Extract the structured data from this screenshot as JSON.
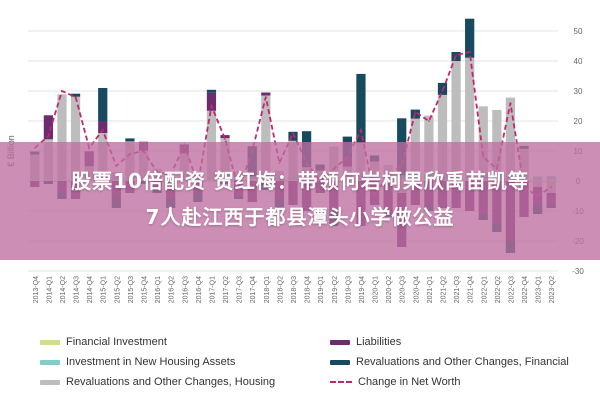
{
  "headline": {
    "line1": "股票10倍配资 贺红梅：带领何岩柯果欣禹苗凯等",
    "line2": "7人赴江西于都县潭头小学做公益"
  },
  "chart_data": {
    "type": "bar",
    "ylabel": "€ Billion",
    "ylim": [
      -30,
      50
    ],
    "yticks": [
      50,
      40,
      30,
      20,
      10,
      0,
      -10,
      -20,
      -30
    ],
    "grid": true,
    "legend_position": "bottom",
    "categories": [
      "2013-Q4",
      "2014-Q1",
      "2014-Q2",
      "2014-Q3",
      "2014-Q4",
      "2015-Q1",
      "2015-Q2",
      "2015-Q3",
      "2015-Q4",
      "2016-Q1",
      "2016-Q2",
      "2016-Q3",
      "2016-Q4",
      "2017-Q1",
      "2017-Q2",
      "2017-Q3",
      "2017-Q4",
      "2018-Q1",
      "2018-Q2",
      "2018-Q3",
      "2018-Q4",
      "2019-Q1",
      "2019-Q2",
      "2019-Q3",
      "2019-Q4",
      "2020-Q1",
      "2020-Q2",
      "2020-Q3",
      "2020-Q4",
      "2021-Q1",
      "2021-Q2",
      "2021-Q3",
      "2021-Q4",
      "2022-Q1",
      "2022-Q2",
      "2022-Q3",
      "2022-Q4",
      "2023-Q1",
      "2023-Q2"
    ],
    "series": [
      {
        "name": "Financial Investment",
        "kind": "bar",
        "color": "#cfe08c",
        "values": [
          0.3,
          0.4,
          0.3,
          0.5,
          0.3,
          0.4,
          0.3,
          0.5,
          0.4,
          0.3,
          0.5,
          0.4,
          0.3,
          0.5,
          0.4,
          0.3,
          0.6,
          0.5,
          0.4,
          0.3,
          0.5,
          0.4,
          0.3,
          0.6,
          0.5,
          0.4,
          0.3,
          0.6,
          0.5,
          0.4,
          0.3,
          0.5,
          0.6,
          0.4,
          0.3,
          0.5,
          0.4,
          0.3,
          0.4
        ]
      },
      {
        "name": "Investment in New Housing Assets",
        "kind": "bar",
        "color": "#7fcfc6",
        "values": [
          0.5,
          0.5,
          0.6,
          0.6,
          0.6,
          0.6,
          0.7,
          0.7,
          0.7,
          0.8,
          0.8,
          0.8,
          0.8,
          0.9,
          0.9,
          0.9,
          1.0,
          1.0,
          1.0,
          1.1,
          1.1,
          1.1,
          1.2,
          1.2,
          1.2,
          1.1,
          1.0,
          1.3,
          1.3,
          1.4,
          1.4,
          1.5,
          1.5,
          1.5,
          1.4,
          1.3,
          1.3,
          1.2,
          1.2
        ]
      },
      {
        "name": "Revaluations and Other Changes, Housing",
        "kind": "bar",
        "color": "#bdbdbd",
        "values": [
          8,
          13,
          28,
          27,
          4,
          15,
          2,
          12,
          9,
          3,
          0,
          8,
          1,
          22,
          13,
          2,
          0,
          27,
          2,
          12,
          3,
          2,
          10,
          3,
          11,
          5,
          4,
          -4,
          19,
          20,
          27,
          38,
          39,
          23,
          22,
          26,
          9,
          -2,
          -4
        ]
      },
      {
        "name": "Liabilities",
        "kind": "bar",
        "color": "#6b2d6f",
        "values": [
          -2,
          8,
          -4,
          -6,
          5,
          4,
          -6,
          -4,
          3,
          -3,
          -6,
          2,
          -4,
          6,
          1,
          -5,
          -7,
          1,
          -6,
          -8,
          -10,
          -4,
          -10,
          3,
          -15,
          -8,
          -10,
          -18,
          -8,
          -8,
          -9,
          -9,
          -10,
          -11,
          -14,
          -20,
          -12,
          -6,
          -4
        ]
      },
      {
        "name": "Revaluations and Other Changes, Financial",
        "kind": "bar",
        "color": "#174a5e",
        "values": [
          1,
          -1,
          -2,
          1,
          0,
          11,
          -3,
          1,
          -1,
          -1,
          -3,
          1,
          -3,
          1,
          -1,
          -1,
          10,
          -3,
          -3,
          3,
          12,
          2,
          -5,
          7,
          23,
          2,
          -2,
          19,
          3,
          -2,
          4,
          3,
          13,
          -2,
          -3,
          -4,
          1,
          -3,
          -1
        ]
      },
      {
        "name": "Change in Net Worth",
        "kind": "line",
        "style": "dashed",
        "color": "#c4256f",
        "values": [
          11,
          15,
          30,
          28,
          11,
          17,
          5,
          9,
          10,
          3,
          2,
          12,
          -1,
          25,
          14,
          -3,
          10,
          28,
          6,
          16,
          6,
          0,
          4,
          8,
          17,
          -5,
          2,
          5,
          23,
          20,
          30,
          42,
          43,
          8,
          4,
          26,
          -2,
          -5,
          -2
        ]
      }
    ]
  }
}
